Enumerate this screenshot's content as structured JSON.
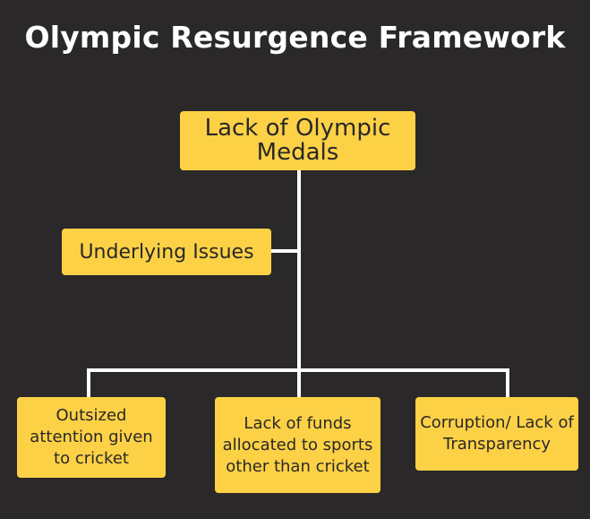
{
  "title": "Olympic Resurgence Framework",
  "colors": {
    "background": "#2a2828",
    "box": "#fcd146",
    "line": "#ffffff",
    "text": "#2a2828",
    "title": "#ffffff"
  },
  "nodes": {
    "root": "Lack of Olympic Medals",
    "issues": "Underlying Issues",
    "children": [
      "Outsized attention given to cricket",
      "Lack of funds allocated to sports other than cricket",
      "Corruption/ Lack of Transparency"
    ]
  }
}
